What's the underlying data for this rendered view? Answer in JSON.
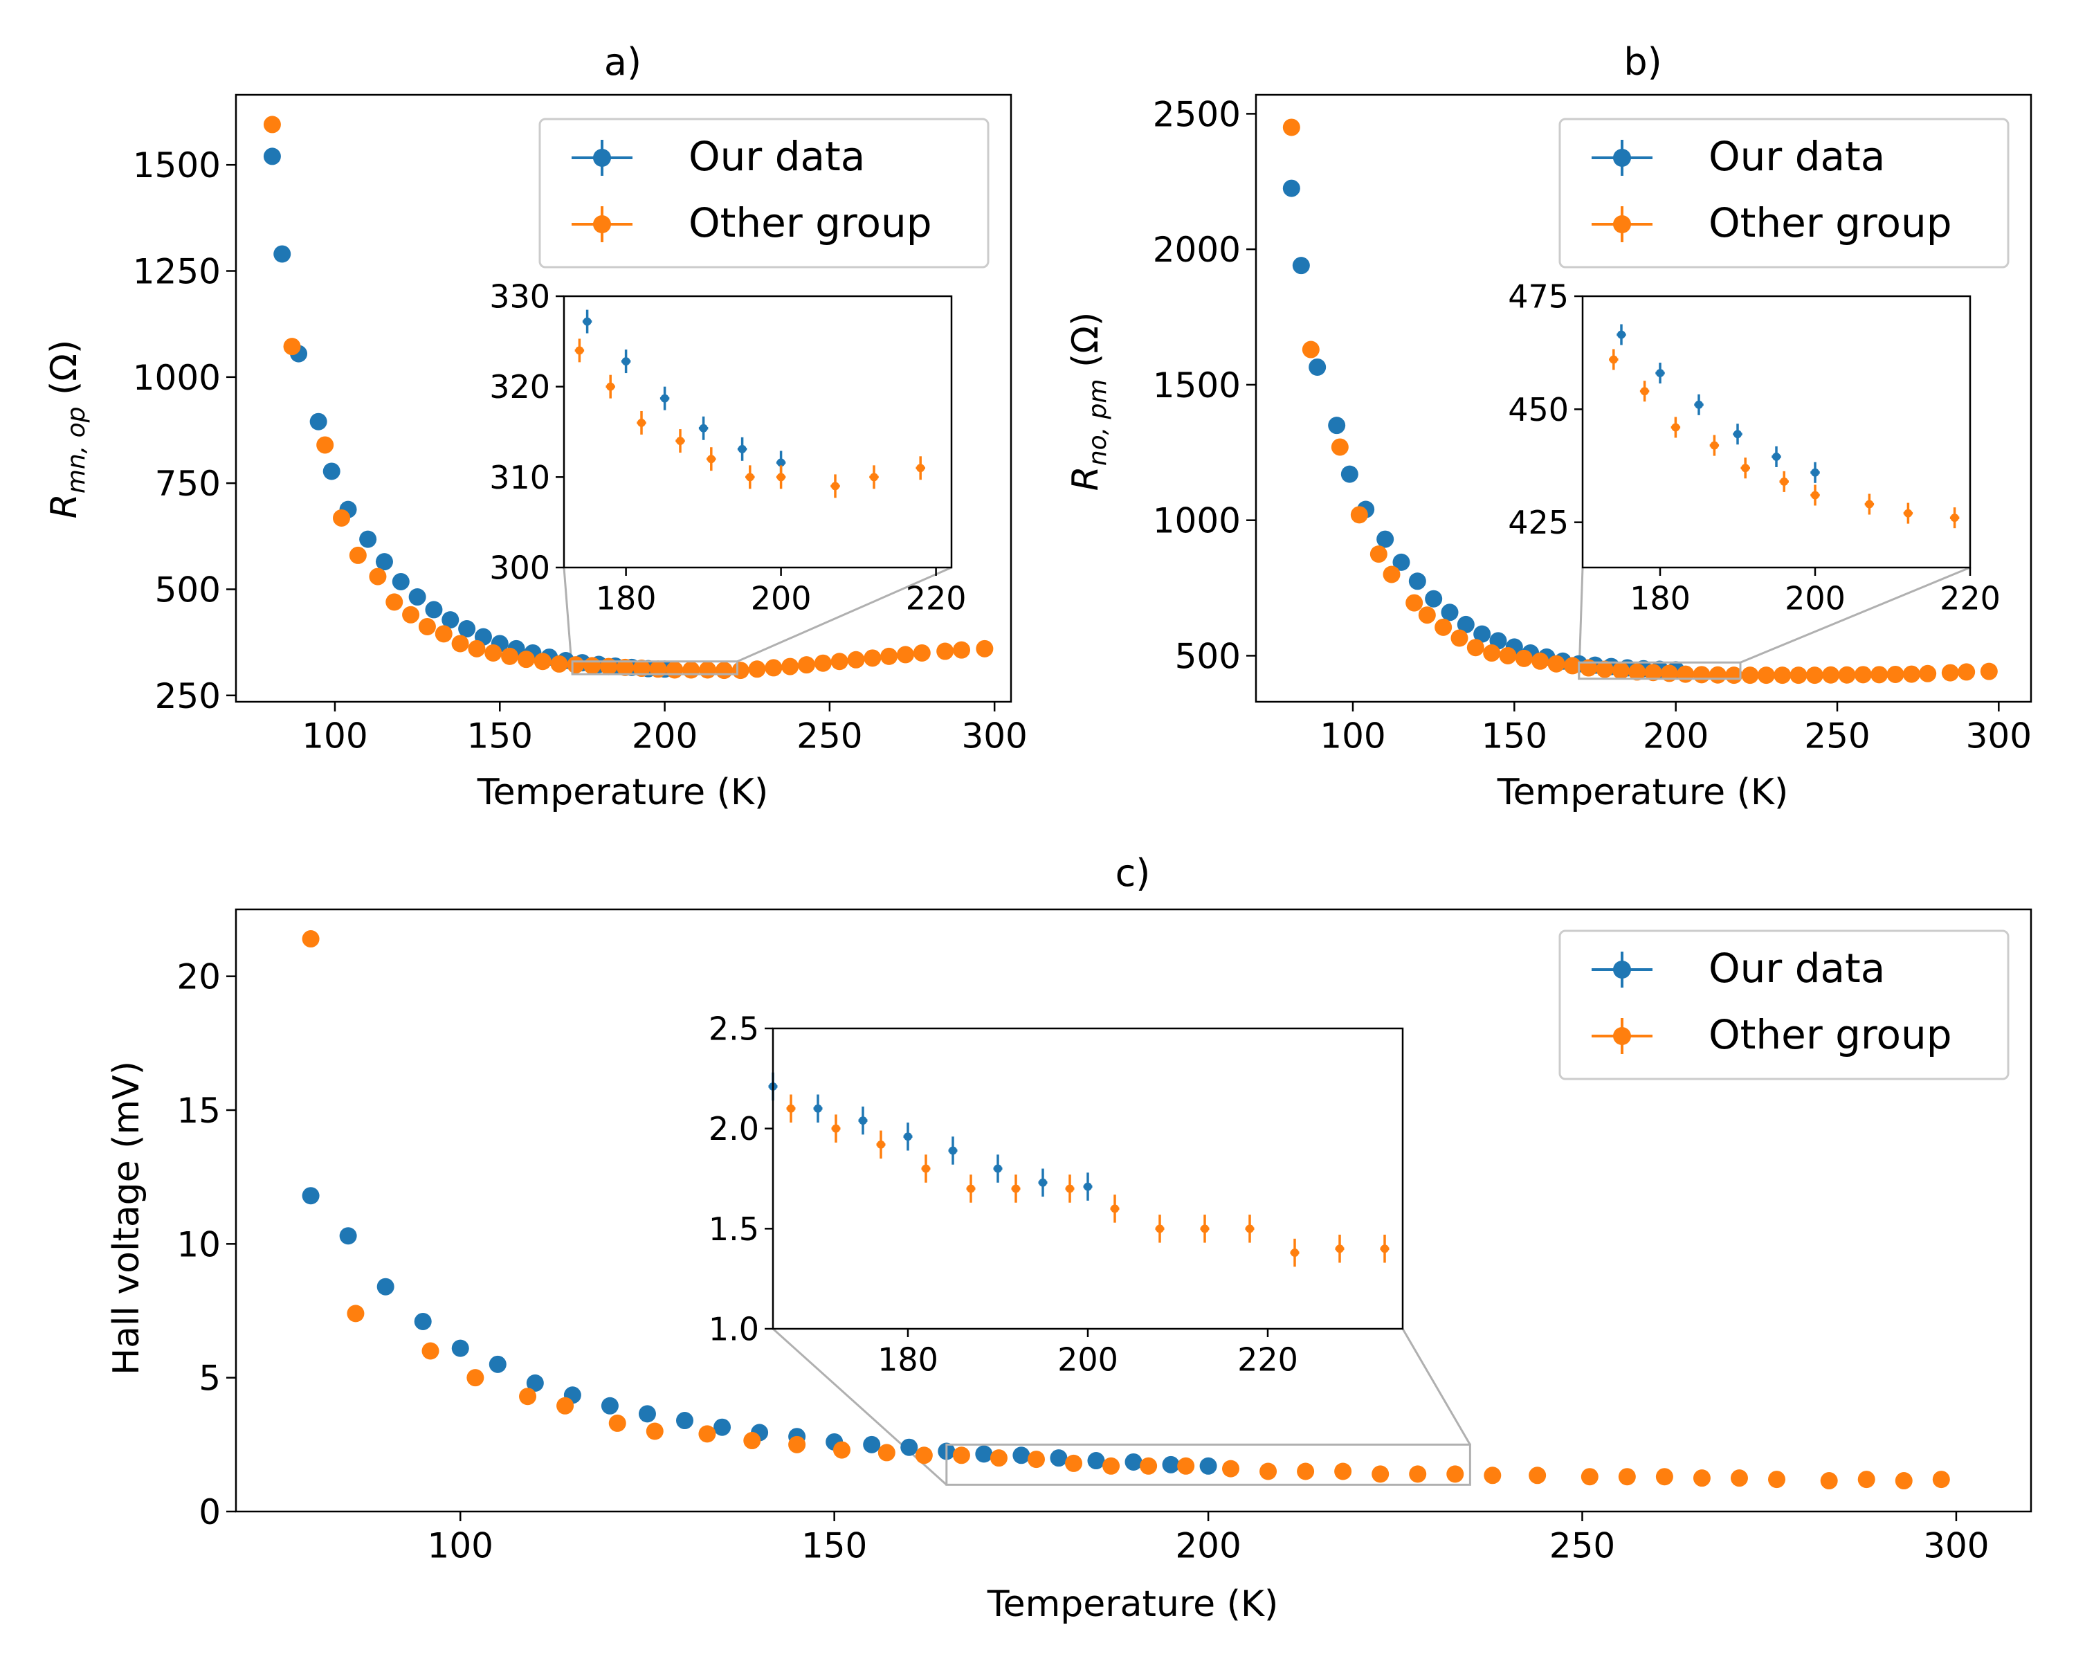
{
  "colors": {
    "our": "#1f77b4",
    "other": "#ff7f0e",
    "zoom": "#b0b0b0"
  },
  "chart_data": [
    {
      "panel": "a",
      "type": "scatter",
      "title": "a)",
      "xlabel": "Temperature (K)",
      "ylabel_main": "R",
      "ylabel_sub": "mn, op",
      "ylabel_unit": " (Ω)",
      "xlim": [
        70,
        305
      ],
      "ylim": [
        235,
        1665
      ],
      "xticks": [
        100,
        150,
        200,
        250,
        300
      ],
      "yticks": [
        250,
        500,
        750,
        1000,
        1250,
        1500
      ],
      "grid": false,
      "legend_position": "top-right",
      "series": [
        {
          "name": "Our data",
          "x": [
            81,
            84,
            89,
            95,
            99,
            104,
            110,
            115,
            120,
            125,
            130,
            135,
            140,
            145,
            150,
            155,
            160,
            165,
            170,
            175,
            180,
            185,
            190,
            195,
            200
          ],
          "y": [
            1520,
            1290,
            1055,
            895,
            778,
            688,
            618,
            565,
            518,
            482,
            452,
            428,
            407,
            388,
            372,
            360,
            350,
            340,
            332,
            327,
            323,
            319,
            316,
            313,
            312
          ]
        },
        {
          "name": "Other group",
          "x": [
            81,
            87,
            97,
            102,
            107,
            113,
            118,
            123,
            128,
            133,
            138,
            143,
            148,
            153,
            158,
            163,
            168,
            173,
            178,
            183,
            188,
            193,
            198,
            203,
            208,
            213,
            218,
            223,
            228,
            233,
            238,
            243,
            248,
            253,
            258,
            263,
            268,
            273,
            278,
            285,
            290,
            297
          ],
          "y": [
            1595,
            1072,
            840,
            668,
            580,
            530,
            470,
            440,
            412,
            395,
            372,
            360,
            350,
            342,
            335,
            330,
            324,
            322,
            320,
            318,
            316,
            314,
            312,
            310,
            310,
            310,
            309,
            309,
            312,
            315,
            318,
            322,
            326,
            330,
            334,
            338,
            342,
            346,
            350,
            354,
            357,
            360
          ]
        }
      ],
      "inset": {
        "xlim": [
          172,
          222
        ],
        "ylim": [
          300,
          330
        ],
        "xticks": [
          180,
          200,
          220
        ],
        "yticks": [
          300,
          310,
          320,
          330
        ],
        "series": [
          {
            "name": "Our data",
            "x": [
              175,
              180,
              185,
              190,
              195,
              200
            ],
            "y": [
              327.2,
              322.8,
              318.7,
              315.4,
              313.1,
              311.6
            ],
            "yerr": 1.3,
            "xerr": 0.6
          },
          {
            "name": "Other group",
            "x": [
              174,
              178,
              182,
              187,
              191,
              196,
              200,
              207,
              212,
              218
            ],
            "y": [
              324,
              320,
              316,
              314,
              312,
              310,
              310,
              309,
              310,
              311
            ],
            "yerr": 1.3,
            "xerr": 0.6
          }
        ]
      }
    },
    {
      "panel": "b",
      "type": "scatter",
      "title": "b)",
      "xlabel": "Temperature (K)",
      "ylabel_main": "R",
      "ylabel_sub": "no, pm",
      "ylabel_unit": " (Ω)",
      "xlim": [
        70,
        310
      ],
      "ylim": [
        330,
        2570
      ],
      "xticks": [
        100,
        150,
        200,
        250,
        300
      ],
      "yticks": [
        500,
        1000,
        1500,
        2000,
        2500
      ],
      "grid": false,
      "legend_position": "top-right",
      "series": [
        {
          "name": "Our data",
          "x": [
            81,
            84,
            89,
            95,
            99,
            104,
            110,
            115,
            120,
            125,
            130,
            135,
            140,
            145,
            150,
            155,
            160,
            165,
            170,
            175,
            180,
            185,
            190,
            195,
            200
          ],
          "y": [
            2225,
            1940,
            1565,
            1350,
            1170,
            1040,
            930,
            845,
            775,
            710,
            660,
            615,
            580,
            555,
            532,
            510,
            495,
            480,
            470,
            465,
            460,
            455,
            452,
            450,
            448
          ]
        },
        {
          "name": "Other group",
          "x": [
            81,
            87,
            96,
            102,
            108,
            112,
            119,
            123,
            128,
            133,
            138,
            143,
            148,
            153,
            158,
            163,
            168,
            173,
            178,
            183,
            188,
            193,
            198,
            203,
            208,
            213,
            218,
            223,
            228,
            233,
            238,
            243,
            248,
            253,
            258,
            263,
            268,
            273,
            278,
            285,
            290,
            297
          ],
          "y": [
            2450,
            1630,
            1270,
            1020,
            875,
            800,
            695,
            650,
            605,
            565,
            530,
            510,
            500,
            490,
            480,
            470,
            463,
            455,
            450,
            445,
            440,
            438,
            435,
            432,
            430,
            429,
            428,
            428,
            428,
            428,
            428,
            428,
            429,
            429,
            430,
            430,
            431,
            432,
            434,
            437,
            440,
            442
          ]
        }
      ],
      "inset": {
        "xlim": [
          170,
          220
        ],
        "ylim": [
          415,
          475
        ],
        "xticks": [
          180,
          200,
          220
        ],
        "yticks": [
          425,
          450,
          475
        ],
        "series": [
          {
            "name": "Our data",
            "x": [
              175,
              180,
              185,
              190,
              195,
              200
            ],
            "y": [
              466.5,
              458,
              451,
              444.5,
              439.5,
              436
            ],
            "yerr": 2.3,
            "xerr": 0.6
          },
          {
            "name": "Other group",
            "x": [
              174,
              178,
              182,
              187,
              191,
              196,
              200,
              207,
              212,
              218
            ],
            "y": [
              461,
              454,
              446,
              442,
              437,
              434,
              431,
              429,
              427,
              426
            ],
            "yerr": 2.3,
            "xerr": 0.6
          }
        ]
      }
    },
    {
      "panel": "c",
      "type": "scatter",
      "title": "c)",
      "xlabel": "Temperature (K)",
      "ylabel": "Hall voltage (mV)",
      "xlim": [
        70,
        310
      ],
      "ylim": [
        0,
        22.5
      ],
      "xticks": [
        100,
        150,
        200,
        250,
        300
      ],
      "yticks": [
        0,
        5,
        10,
        15,
        20
      ],
      "grid": false,
      "legend_position": "top-right",
      "series": [
        {
          "name": "Our data",
          "x": [
            80,
            85,
            90,
            95,
            100,
            105,
            110,
            115,
            120,
            125,
            130,
            135,
            140,
            145,
            150,
            155,
            160,
            165,
            170,
            175,
            180,
            185,
            190,
            195,
            200
          ],
          "y": [
            11.8,
            10.3,
            8.4,
            7.1,
            6.1,
            5.5,
            4.8,
            4.35,
            3.95,
            3.65,
            3.4,
            3.15,
            2.95,
            2.8,
            2.6,
            2.5,
            2.4,
            2.25,
            2.15,
            2.1,
            2.0,
            1.9,
            1.85,
            1.75,
            1.7
          ]
        },
        {
          "name": "Other group",
          "x": [
            80,
            86,
            96,
            102,
            109,
            114,
            121,
            126,
            133,
            139,
            145,
            151,
            157,
            162,
            167,
            172,
            177,
            182,
            187,
            192,
            197,
            203,
            208,
            213,
            218,
            223,
            228,
            233,
            238,
            244,
            251,
            256,
            261,
            266,
            271,
            276,
            283,
            288,
            293,
            298
          ],
          "y": [
            21.4,
            7.4,
            6.0,
            5.0,
            4.3,
            3.95,
            3.3,
            3.0,
            2.9,
            2.65,
            2.5,
            2.3,
            2.2,
            2.1,
            2.1,
            2.0,
            1.95,
            1.8,
            1.7,
            1.7,
            1.7,
            1.6,
            1.5,
            1.5,
            1.5,
            1.4,
            1.4,
            1.4,
            1.35,
            1.35,
            1.3,
            1.3,
            1.3,
            1.25,
            1.25,
            1.2,
            1.15,
            1.2,
            1.15,
            1.2
          ]
        }
      ],
      "inset": {
        "xlim": [
          165,
          235
        ],
        "ylim": [
          1.0,
          2.5
        ],
        "xticks": [
          180,
          200,
          220
        ],
        "yticks": [
          1.0,
          1.5,
          2.0,
          2.5
        ],
        "series": [
          {
            "name": "Our data",
            "x": [
              165,
              170,
              175,
              180,
              185,
              190,
              195,
              200
            ],
            "y": [
              2.21,
              2.1,
              2.04,
              1.96,
              1.89,
              1.8,
              1.73,
              1.71
            ],
            "yerr": 0.07,
            "xerr": 0.5
          },
          {
            "name": "Other group",
            "x": [
              167,
              172,
              177,
              182,
              187,
              192,
              198,
              203,
              208,
              213,
              218,
              223,
              228,
              233
            ],
            "y": [
              2.1,
              2.0,
              1.92,
              1.8,
              1.7,
              1.7,
              1.7,
              1.6,
              1.5,
              1.5,
              1.5,
              1.38,
              1.4,
              1.4
            ],
            "yerr": 0.07,
            "xerr": 0.5
          }
        ]
      }
    }
  ]
}
